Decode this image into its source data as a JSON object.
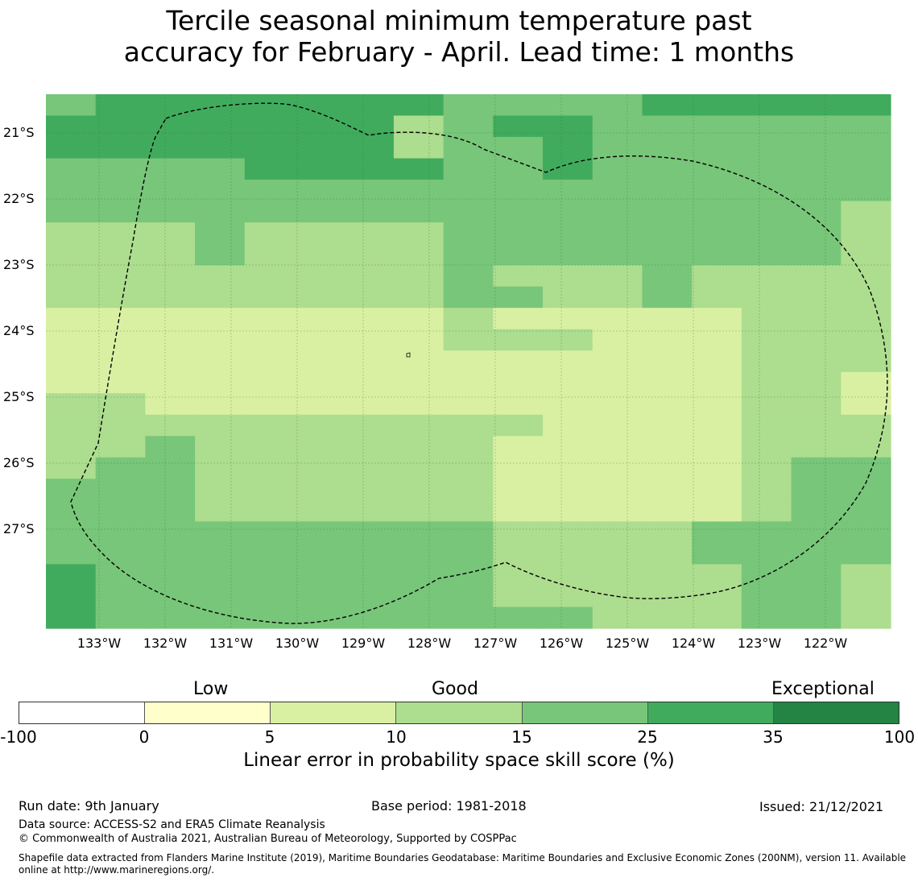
{
  "title": {
    "line1": "Tercile seasonal minimum temperature past",
    "line2": "accuracy for February - April. Lead time: 1 months"
  },
  "map": {
    "lat_labels": [
      "21°S",
      "22°S",
      "23°S",
      "24°S",
      "25°S",
      "26°S",
      "27°S"
    ],
    "lon_labels": [
      "133°W",
      "132°W",
      "131°W",
      "130°W",
      "129°W",
      "128°W",
      "127°W",
      "126°W",
      "125°W",
      "124°W",
      "123°W",
      "122°W"
    ],
    "grid_colors": [
      "#f0f0f0"
    ],
    "cell_classes_legend": {
      "0": "#ffffcc",
      "1": "#d9f0a3",
      "2": "#addd8e",
      "3": "#78c679",
      "4": "#41ab5d",
      "5": "#238443"
    },
    "cells": [
      "34444444333344444",
      "44444442344333333",
      "44444442334333333",
      "33334444334333333",
      "33333333333333333",
      "33333333333333332",
      "22232222333333332",
      "22232222333333332",
      "22222222322232222",
      "22222222332232222",
      "11111111211111222",
      "11111111222111222",
      "11111111111111222",
      "11111111111111221",
      "22111111111111221",
      "22222222221111222",
      "22322222211111222",
      "23322222211111233",
      "33322222211111233",
      "33322222211111233",
      "33333333322223333",
      "33333333322223333",
      "43333333322222332",
      "43333333322222332",
      "43333333333222332"
    ]
  },
  "colorbar": {
    "category_labels": [
      "Low",
      "Good",
      "Exceptional"
    ],
    "ticks": [
      "-100",
      "0",
      "5",
      "10",
      "15",
      "25",
      "35",
      "100"
    ],
    "colors": [
      "#ffffff",
      "#ffffcc",
      "#d9f0a3",
      "#addd8e",
      "#78c679",
      "#41ab5d",
      "#238443"
    ],
    "title": "Linear error in probability space skill score (%)"
  },
  "footer": {
    "run_date": "Run date: 9th January",
    "base_period": "Base period: 1981-2018",
    "issued": "Issued: 21/12/2021",
    "data_source": "Data source: ACCESS-S2 and ERA5 Climate Reanalysis",
    "copyright": "© Commonwealth of Australia 2021, Australian Bureau of Meteorology, Supported by COSPPac",
    "shapefile": "Shapefile data extracted from Flanders Marine Institute (2019), Maritime Boundaries Geodatabase: Maritime Boundaries and Exclusive Economic Zones (200NM), version 11. Available online at http://www.marineregions.org/."
  }
}
